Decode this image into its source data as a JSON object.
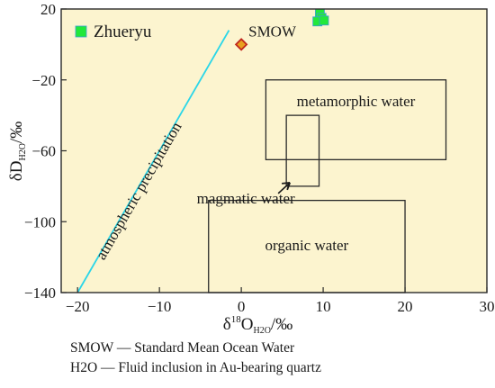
{
  "chart_data": {
    "type": "scatter",
    "title": "",
    "xlabel": {
      "delta": "δ",
      "sup": "18",
      "main": "O",
      "sub": "H2O",
      "unit": "/‰"
    },
    "ylabel": {
      "delta": "δ",
      "main": "D",
      "sub": "H2O",
      "unit": "/‰"
    },
    "xlim": [
      -22,
      30
    ],
    "ylim": [
      -140,
      20
    ],
    "xticks": [
      -20,
      -10,
      0,
      10,
      20,
      30
    ],
    "yticks": [
      -140,
      -100,
      -60,
      -20,
      20
    ],
    "xtick_labels": [
      "−20",
      "−10",
      "0",
      "10",
      "20",
      "30"
    ],
    "ytick_labels": [
      "−140",
      "−100",
      "−60",
      "−20",
      "20"
    ],
    "grid": false,
    "legend_position": "top-left",
    "legend": [
      {
        "name": "Zhueryu",
        "marker": "square",
        "color": "#22e83a"
      }
    ],
    "series": [
      {
        "name": "Zhueryu",
        "marker": "square",
        "color": "#22e83a",
        "points": [
          {
            "x": 9.6,
            "y": 17.5
          },
          {
            "x": 9.8,
            "y": 15
          },
          {
            "x": 9.3,
            "y": 13
          },
          {
            "x": 10.1,
            "y": 13.5
          }
        ]
      }
    ],
    "reference_point": {
      "label": "SMOW",
      "x": 0,
      "y": 0,
      "marker": "diamond",
      "fill": "#e8a020",
      "stroke": "#c0241c"
    },
    "lines": [
      {
        "label": "atmospheric precipitation",
        "x1": -20,
        "y1": -140,
        "x2": -1.5,
        "y2": 8,
        "color": "#2ad6e8"
      }
    ],
    "regions": [
      {
        "label": "metamorphic water",
        "x1": 3,
        "x2": 25,
        "y1": -65,
        "y2": -20
      },
      {
        "label": "magmatic water",
        "x1": 5.5,
        "x2": 9.5,
        "y1": -80,
        "y2": -40
      },
      {
        "label": "organic water",
        "x1": -4,
        "x2": 20,
        "y1": -140,
        "y2": -88
      }
    ],
    "background": "#fcf4cf"
  },
  "footnotes": [
    "SMOW — Standard Mean Ocean Water",
    "H2O — Fluid inclusion in Au-bearing quartz"
  ]
}
